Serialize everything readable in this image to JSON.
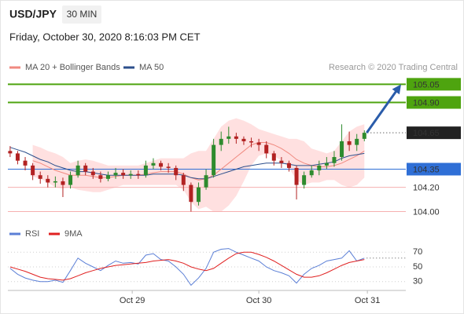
{
  "header": {
    "symbol": "USD/JPY",
    "timeframe": "30 MIN",
    "timestamp": "Friday, October 30, 2020 8:16:03 PM CET",
    "credit": "Research © 2020 Trading Central"
  },
  "chart_data": [
    {
      "type": "candlestick",
      "xlim": [
        -0.3,
        52.5
      ],
      "ylim": [
        103.9,
        105.13
      ],
      "up_color": "#2e8b2e",
      "down_color": "#b22222",
      "open": [
        104.5,
        104.48,
        104.42,
        104.38,
        104.3,
        104.27,
        104.24,
        104.25,
        104.22,
        104.3,
        104.38,
        104.33,
        104.3,
        104.27,
        104.3,
        104.32,
        104.3,
        104.31,
        104.3,
        104.38,
        104.4,
        104.37,
        104.36,
        104.3,
        104.22,
        104.08,
        104.2,
        104.3,
        104.55,
        104.6,
        104.62,
        104.6,
        104.58,
        104.57,
        104.55,
        104.48,
        104.42,
        104.4,
        104.36,
        104.22,
        104.3,
        104.34,
        104.38,
        104.4,
        104.45,
        104.58,
        104.55,
        104.6
      ],
      "high": [
        104.54,
        104.5,
        104.45,
        104.4,
        104.33,
        104.3,
        104.29,
        104.28,
        104.33,
        104.42,
        104.4,
        104.36,
        104.33,
        104.33,
        104.36,
        104.35,
        104.34,
        104.34,
        104.42,
        104.44,
        104.42,
        104.4,
        104.38,
        104.32,
        104.24,
        104.24,
        104.35,
        104.6,
        104.66,
        104.7,
        104.65,
        104.62,
        104.61,
        104.6,
        104.58,
        104.5,
        104.45,
        104.42,
        104.38,
        104.33,
        104.38,
        104.42,
        104.45,
        104.5,
        104.72,
        104.66,
        104.64,
        104.67
      ],
      "low": [
        104.45,
        104.39,
        104.34,
        104.26,
        104.23,
        104.2,
        104.2,
        104.12,
        104.19,
        104.28,
        104.3,
        104.27,
        104.24,
        104.25,
        104.27,
        104.27,
        104.27,
        104.27,
        104.28,
        104.35,
        104.34,
        104.32,
        104.26,
        104.17,
        104.0,
        104.05,
        104.18,
        104.28,
        104.5,
        104.56,
        104.56,
        104.55,
        104.53,
        104.5,
        104.44,
        104.38,
        104.36,
        104.33,
        104.1,
        104.19,
        104.28,
        104.3,
        104.35,
        104.37,
        104.42,
        104.5,
        104.5,
        104.58
      ],
      "close": [
        104.48,
        104.42,
        104.38,
        104.3,
        104.27,
        104.24,
        104.25,
        104.22,
        104.3,
        104.38,
        104.33,
        104.3,
        104.27,
        104.3,
        104.32,
        104.3,
        104.31,
        104.3,
        104.38,
        104.4,
        104.37,
        104.36,
        104.3,
        104.22,
        104.08,
        104.2,
        104.3,
        104.55,
        104.6,
        104.62,
        104.6,
        104.58,
        104.57,
        104.55,
        104.48,
        104.42,
        104.4,
        104.36,
        104.22,
        104.3,
        104.34,
        104.38,
        104.4,
        104.45,
        104.58,
        104.55,
        104.6,
        104.65
      ],
      "series": [
        {
          "name": "MA 20 + Bollinger Bands",
          "color": "#f08a80",
          "band_color": "#ffd6d6",
          "values": [
            null,
            null,
            null,
            104.42,
            104.4,
            104.37,
            104.34,
            104.32,
            104.3,
            104.3,
            104.3,
            104.29,
            104.28,
            104.28,
            104.29,
            104.3,
            104.3,
            104.3,
            104.31,
            104.32,
            104.33,
            104.33,
            104.33,
            104.31,
            104.28,
            104.26,
            104.27,
            104.3,
            104.35,
            104.4,
            104.45,
            104.5,
            104.55,
            104.57,
            104.57,
            104.55,
            104.52,
            104.48,
            104.43,
            104.4,
            104.38,
            104.37,
            104.37,
            104.38,
            104.4,
            104.43,
            104.46,
            104.5
          ],
          "upper": [
            null,
            null,
            null,
            104.55,
            104.53,
            104.5,
            104.48,
            104.45,
            104.4,
            104.42,
            104.43,
            104.42,
            104.4,
            104.38,
            104.38,
            104.38,
            104.38,
            104.38,
            104.4,
            104.42,
            104.44,
            104.44,
            104.44,
            104.44,
            104.48,
            104.5,
            104.5,
            104.6,
            104.7,
            104.75,
            104.77,
            104.75,
            104.72,
            104.68,
            104.66,
            104.64,
            104.62,
            104.6,
            104.6,
            104.58,
            104.52,
            104.5,
            104.48,
            104.5,
            104.58,
            104.66,
            104.7,
            104.72
          ],
          "lower": [
            null,
            null,
            null,
            104.29,
            104.27,
            104.24,
            104.2,
            104.19,
            104.2,
            104.18,
            104.17,
            104.16,
            104.16,
            104.18,
            104.2,
            104.22,
            104.22,
            104.22,
            104.22,
            104.22,
            104.22,
            104.22,
            104.22,
            104.18,
            104.08,
            104.02,
            104.04,
            104.0,
            104.0,
            104.05,
            104.13,
            104.25,
            104.38,
            104.46,
            104.48,
            104.46,
            104.42,
            104.36,
            104.26,
            104.22,
            104.24,
            104.24,
            104.26,
            104.26,
            104.22,
            104.2,
            104.22,
            104.28
          ]
        },
        {
          "name": "MA 50",
          "color": "#2c4f8c",
          "values": [
            104.53,
            104.51,
            104.49,
            104.46,
            104.43,
            104.41,
            104.38,
            104.36,
            104.34,
            104.33,
            104.33,
            104.32,
            104.31,
            104.3,
            104.3,
            104.3,
            104.3,
            104.3,
            104.3,
            104.31,
            104.31,
            104.31,
            104.31,
            104.3,
            104.28,
            104.27,
            104.27,
            104.29,
            104.31,
            104.33,
            104.35,
            104.37,
            104.38,
            104.39,
            104.4,
            104.4,
            104.4,
            104.39,
            104.38,
            104.38,
            104.38,
            104.39,
            104.4,
            104.41,
            104.44,
            104.46,
            104.47,
            104.48
          ]
        }
      ],
      "levels": [
        {
          "value": 105.05,
          "color": "#4ea40f",
          "box": true,
          "style": "bold"
        },
        {
          "value": 104.9,
          "label": "104.90",
          "color": "#4ea40f",
          "box": true,
          "style": "bold"
        },
        {
          "value": 104.65,
          "color": "#222222",
          "box": true,
          "style": "dotted"
        },
        {
          "value": 104.35,
          "color": "#2f6fd6",
          "box": true,
          "style": "solid"
        },
        {
          "value": 104.2,
          "label": "104.20",
          "color": "#f6b0b0",
          "text_color": "#d93030",
          "box": false,
          "style": "solid"
        },
        {
          "value": 104.0,
          "label": "104.00",
          "color": "#f6b0b0",
          "text_color": "#d93030",
          "box": false,
          "style": "solid"
        }
      ]
    },
    {
      "type": "line",
      "xlim": [
        -0.3,
        52.5
      ],
      "ylim": [
        18,
        82
      ],
      "yticks": [
        30,
        50,
        70
      ],
      "grid": true,
      "xticks": [
        {
          "value": 16.2,
          "label": "Oct 29"
        },
        {
          "value": 33,
          "label": "Oct 30"
        },
        {
          "value": 47.4,
          "label": "Oct 31"
        }
      ],
      "series": [
        {
          "name": "RSI",
          "color": "#5b7fd6",
          "values": [
            48,
            40,
            35,
            32,
            30,
            30,
            32,
            29,
            45,
            62,
            55,
            50,
            45,
            52,
            58,
            55,
            56,
            54,
            66,
            68,
            60,
            58,
            50,
            40,
            25,
            35,
            48,
            70,
            74,
            75,
            70,
            66,
            62,
            58,
            50,
            45,
            42,
            38,
            28,
            40,
            48,
            52,
            58,
            60,
            62,
            72,
            58,
            62
          ]
        },
        {
          "name": "9MA",
          "color": "#e02020",
          "values": [
            50,
            47,
            44,
            40,
            36,
            34,
            33,
            32,
            34,
            38,
            42,
            45,
            48,
            50,
            52,
            53,
            54,
            55,
            56,
            58,
            59,
            60,
            58,
            55,
            50,
            47,
            45,
            48,
            55,
            62,
            68,
            70,
            70,
            67,
            63,
            58,
            52,
            46,
            40,
            36,
            36,
            38,
            42,
            47,
            52,
            56,
            58,
            60
          ]
        }
      ]
    }
  ]
}
